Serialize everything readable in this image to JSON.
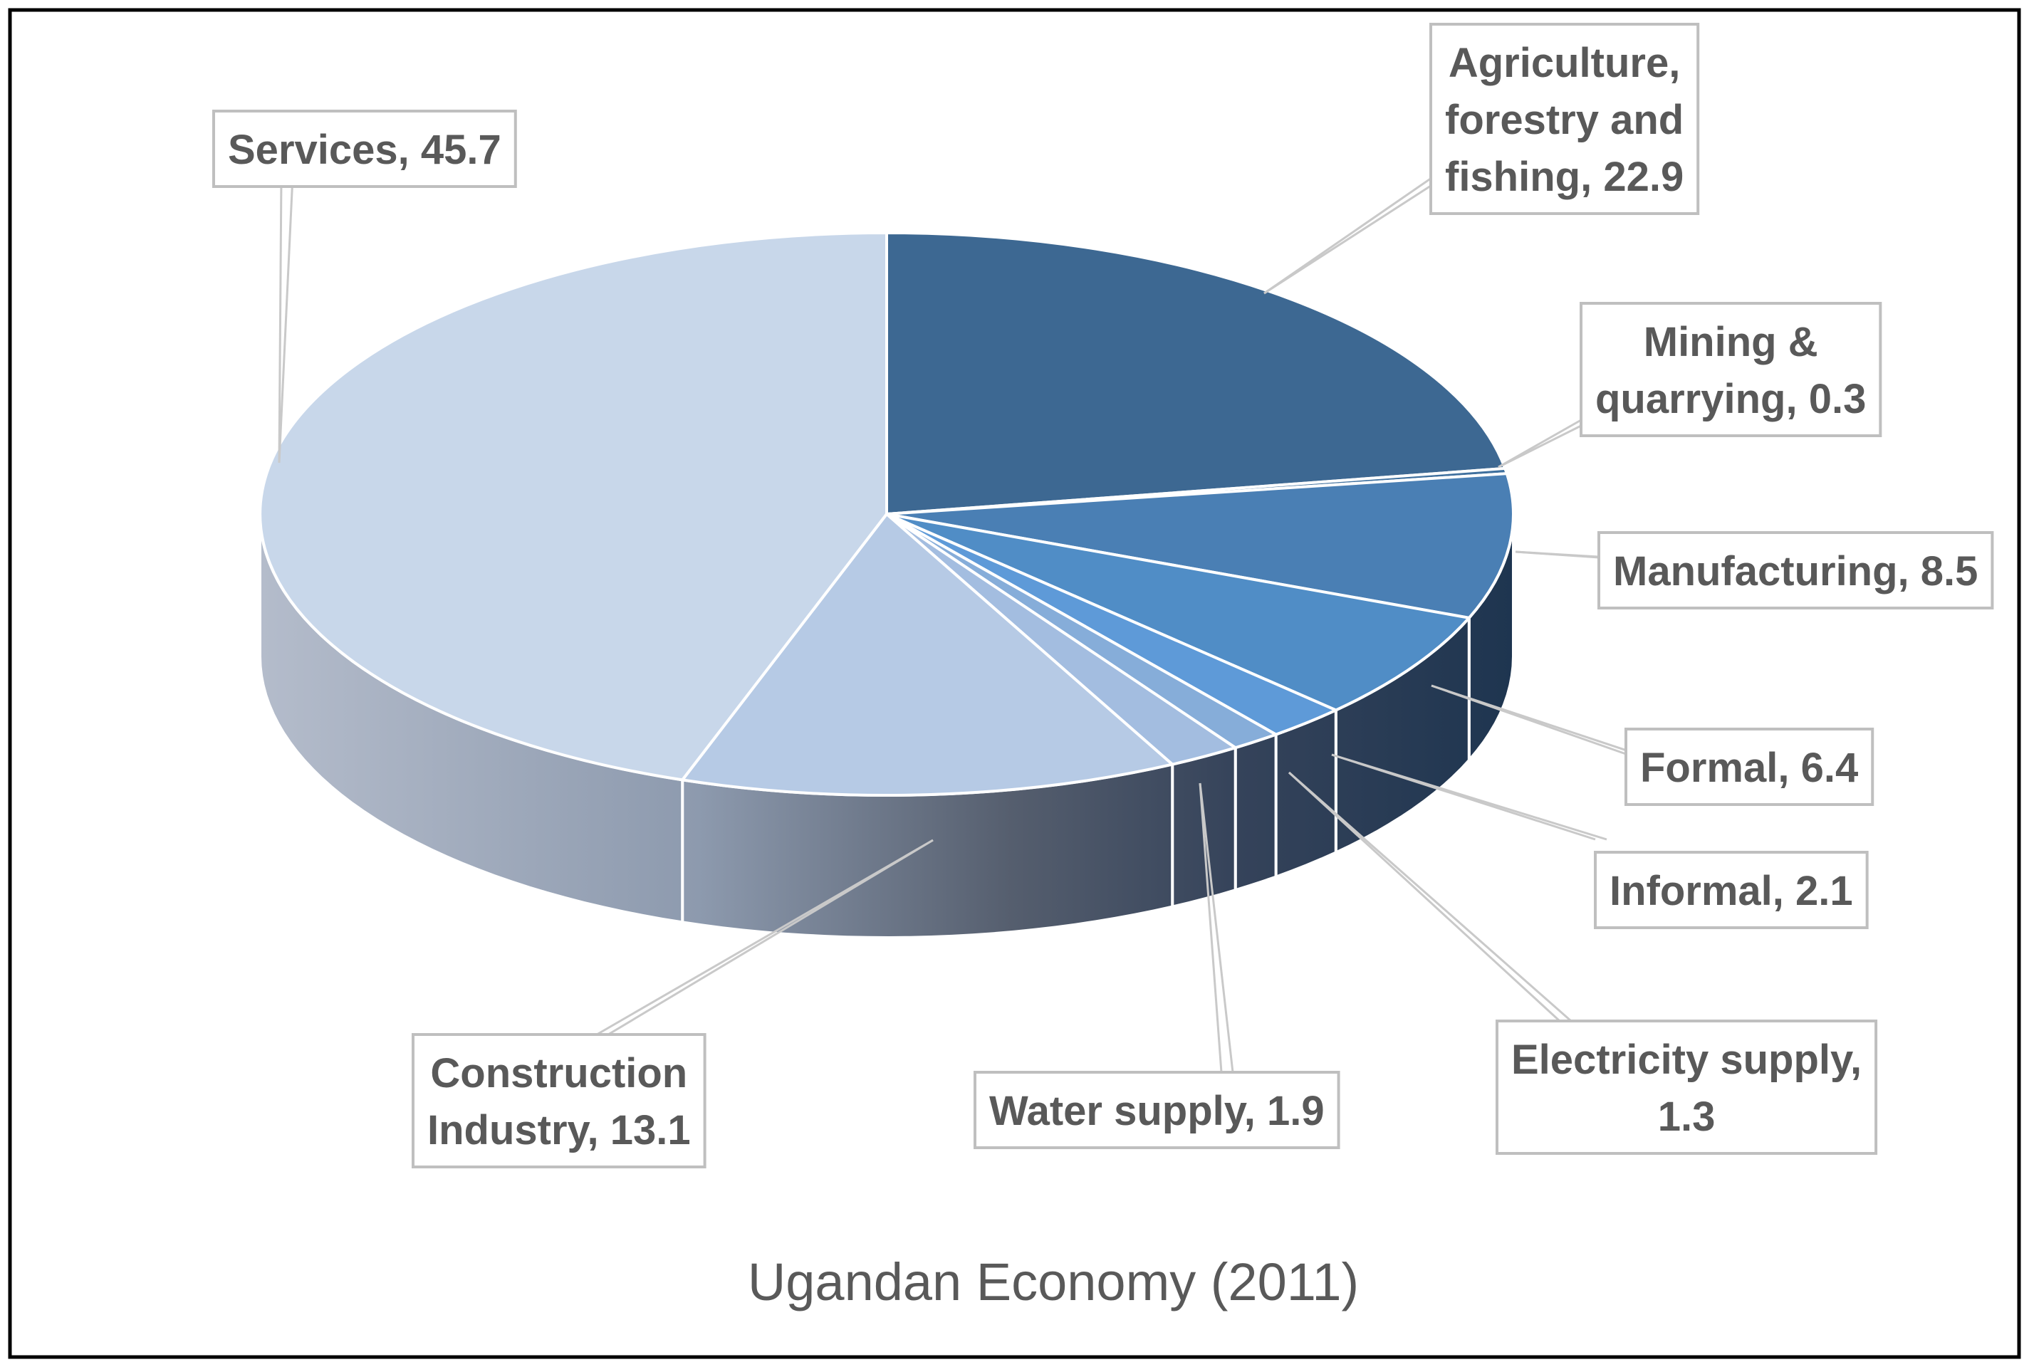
{
  "chart_data": {
    "type": "pie",
    "variant": "3d-exploded-none",
    "title": "Ugandan Economy (2011)",
    "unit": "percent of GDP",
    "start_angle_deg": 0,
    "direction": "clockwise",
    "slices": [
      {
        "name": "Agriculture, forestry and fishing",
        "value": 22.9,
        "label": "Agriculture, forestry and fishing, 22.9",
        "label_lines": [
          "Agriculture,",
          "forestry and",
          "fishing, 22.9"
        ],
        "color": "#3d6892"
      },
      {
        "name": "Mining & quarrying",
        "value": 0.3,
        "label": "Mining & quarrying, 0.3",
        "label_lines": [
          "Mining &",
          "quarrying, 0.3"
        ],
        "color": "#3f709e"
      },
      {
        "name": "Manufacturing",
        "value": 8.5,
        "label": "Manufacturing, 8.5",
        "label_lines": [
          "Manufacturing, 8.5"
        ],
        "color": "#4a7fb4"
      },
      {
        "name": "Formal",
        "value": 6.4,
        "label": "Formal, 6.4",
        "label_lines": [
          "Formal, 6.4"
        ],
        "color": "#508dc6"
      },
      {
        "name": "Informal",
        "value": 2.1,
        "label": "Informal, 2.1",
        "label_lines": [
          "Informal, 2.1"
        ],
        "color": "#5e9ad8"
      },
      {
        "name": "Electricity supply",
        "value": 1.3,
        "label": "Electricity supply, 1.3",
        "label_lines": [
          "Electricity supply,",
          "1.3"
        ],
        "color": "#86add9"
      },
      {
        "name": "Water supply",
        "value": 1.9,
        "label": "Water supply, 1.9",
        "label_lines": [
          "Water supply, 1.9"
        ],
        "color": "#a3bde0"
      },
      {
        "name": "Construction Industry",
        "value": 13.1,
        "label": "Construction Industry, 13.1",
        "label_lines": [
          "Construction",
          "Industry, 13.1"
        ],
        "color": "#b6cae5"
      },
      {
        "name": "Services",
        "value": 45.7,
        "label": "Services, 45.7",
        "label_lines": [
          "Services, 45.7"
        ],
        "color": "#c8d7ea"
      }
    ]
  }
}
